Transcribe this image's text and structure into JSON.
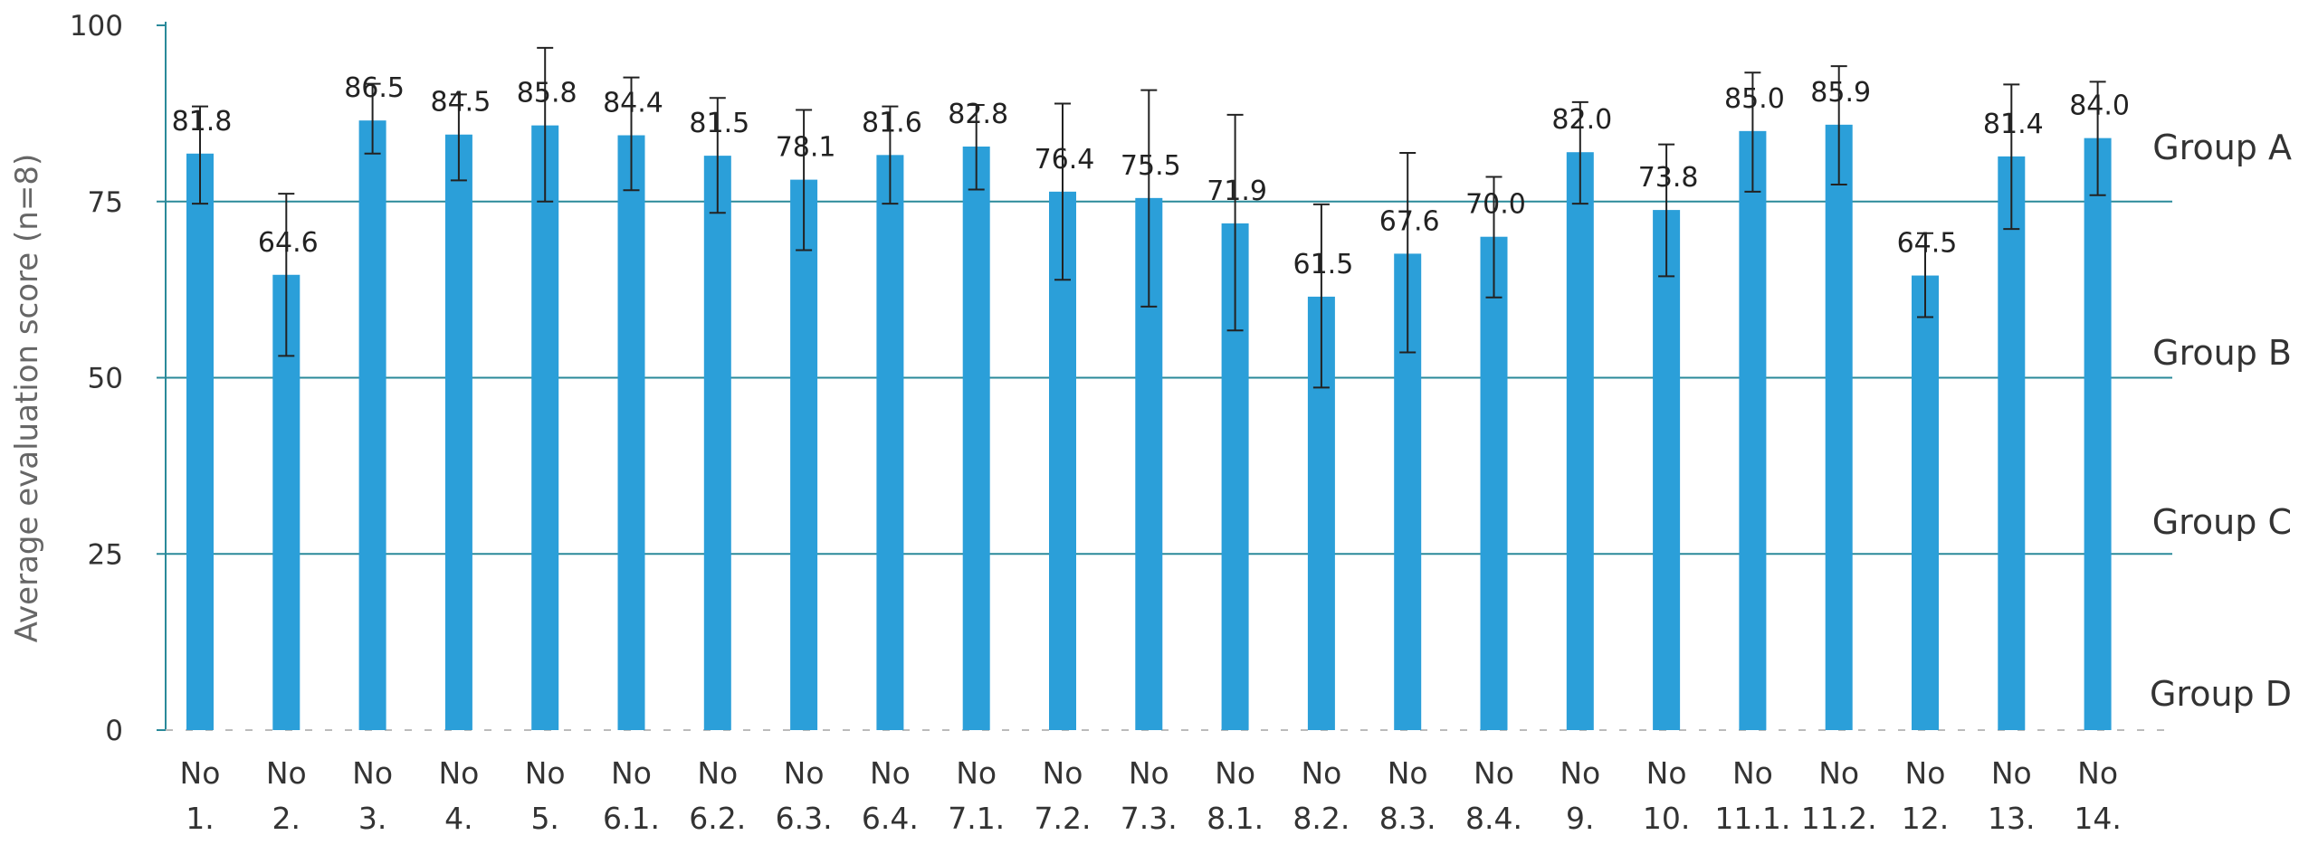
{
  "chart_data": {
    "type": "bar",
    "title": "",
    "xlabel": "",
    "ylabel": "Average evaluation score (n=8)",
    "ylim": [
      0,
      100
    ],
    "yticks": [
      0,
      25,
      50,
      75,
      100
    ],
    "grid": false,
    "bar_color": "#2b9fd9",
    "reference_line_color": "#2a8a9a",
    "reference_lines": [
      25,
      50,
      75
    ],
    "categories": [
      [
        "No",
        "1."
      ],
      [
        "No",
        "2."
      ],
      [
        "No",
        "3."
      ],
      [
        "No",
        "4."
      ],
      [
        "No",
        "5."
      ],
      [
        "No",
        "6.1."
      ],
      [
        "No",
        "6.2."
      ],
      [
        "No",
        "6.3."
      ],
      [
        "No",
        "6.4."
      ],
      [
        "No",
        "7.1."
      ],
      [
        "No",
        "7.2."
      ],
      [
        "No",
        "7.3."
      ],
      [
        "No",
        "8.1."
      ],
      [
        "No",
        "8.2."
      ],
      [
        "No",
        "8.3."
      ],
      [
        "No",
        "8.4."
      ],
      [
        "No",
        "9."
      ],
      [
        "No",
        "10."
      ],
      [
        "No",
        "11.1."
      ],
      [
        "No",
        "11.2."
      ],
      [
        "No",
        "12."
      ],
      [
        "No",
        "13."
      ],
      [
        "No",
        "14."
      ]
    ],
    "values": [
      81.8,
      64.6,
      86.5,
      84.5,
      85.8,
      84.4,
      81.5,
      78.1,
      81.6,
      82.8,
      76.4,
      75.5,
      71.9,
      61.5,
      67.6,
      70.0,
      82.0,
      73.8,
      85.0,
      85.9,
      64.5,
      81.4,
      84.0
    ],
    "value_labels": [
      "81.8",
      "64.6",
      "86.5",
      "84.5",
      "85.8",
      "84.4",
      "81.5",
      "78.1",
      "81.6",
      "82.8",
      "76.4",
      "75.5",
      "71.9",
      "61.5",
      "67.6",
      "70.0",
      "82.0",
      "73.8",
      "85.0",
      "85.9",
      "64.5",
      "81.4",
      "84.0"
    ],
    "error_low": [
      74.7,
      53.1,
      81.8,
      78.0,
      75.0,
      76.6,
      73.4,
      68.1,
      74.7,
      76.7,
      63.9,
      60.1,
      56.7,
      48.6,
      53.6,
      61.4,
      74.7,
      64.4,
      76.4,
      77.4,
      58.6,
      71.1,
      75.9
    ],
    "error_high": [
      88.5,
      76.1,
      91.7,
      90.2,
      96.8,
      92.6,
      89.7,
      88.0,
      88.5,
      88.7,
      88.9,
      90.8,
      87.3,
      74.6,
      81.9,
      78.5,
      89.1,
      83.1,
      93.3,
      94.2,
      70.5,
      91.6,
      92.0
    ],
    "group_labels": [
      "Group A",
      "Group B",
      "Group C",
      "Group D"
    ]
  }
}
